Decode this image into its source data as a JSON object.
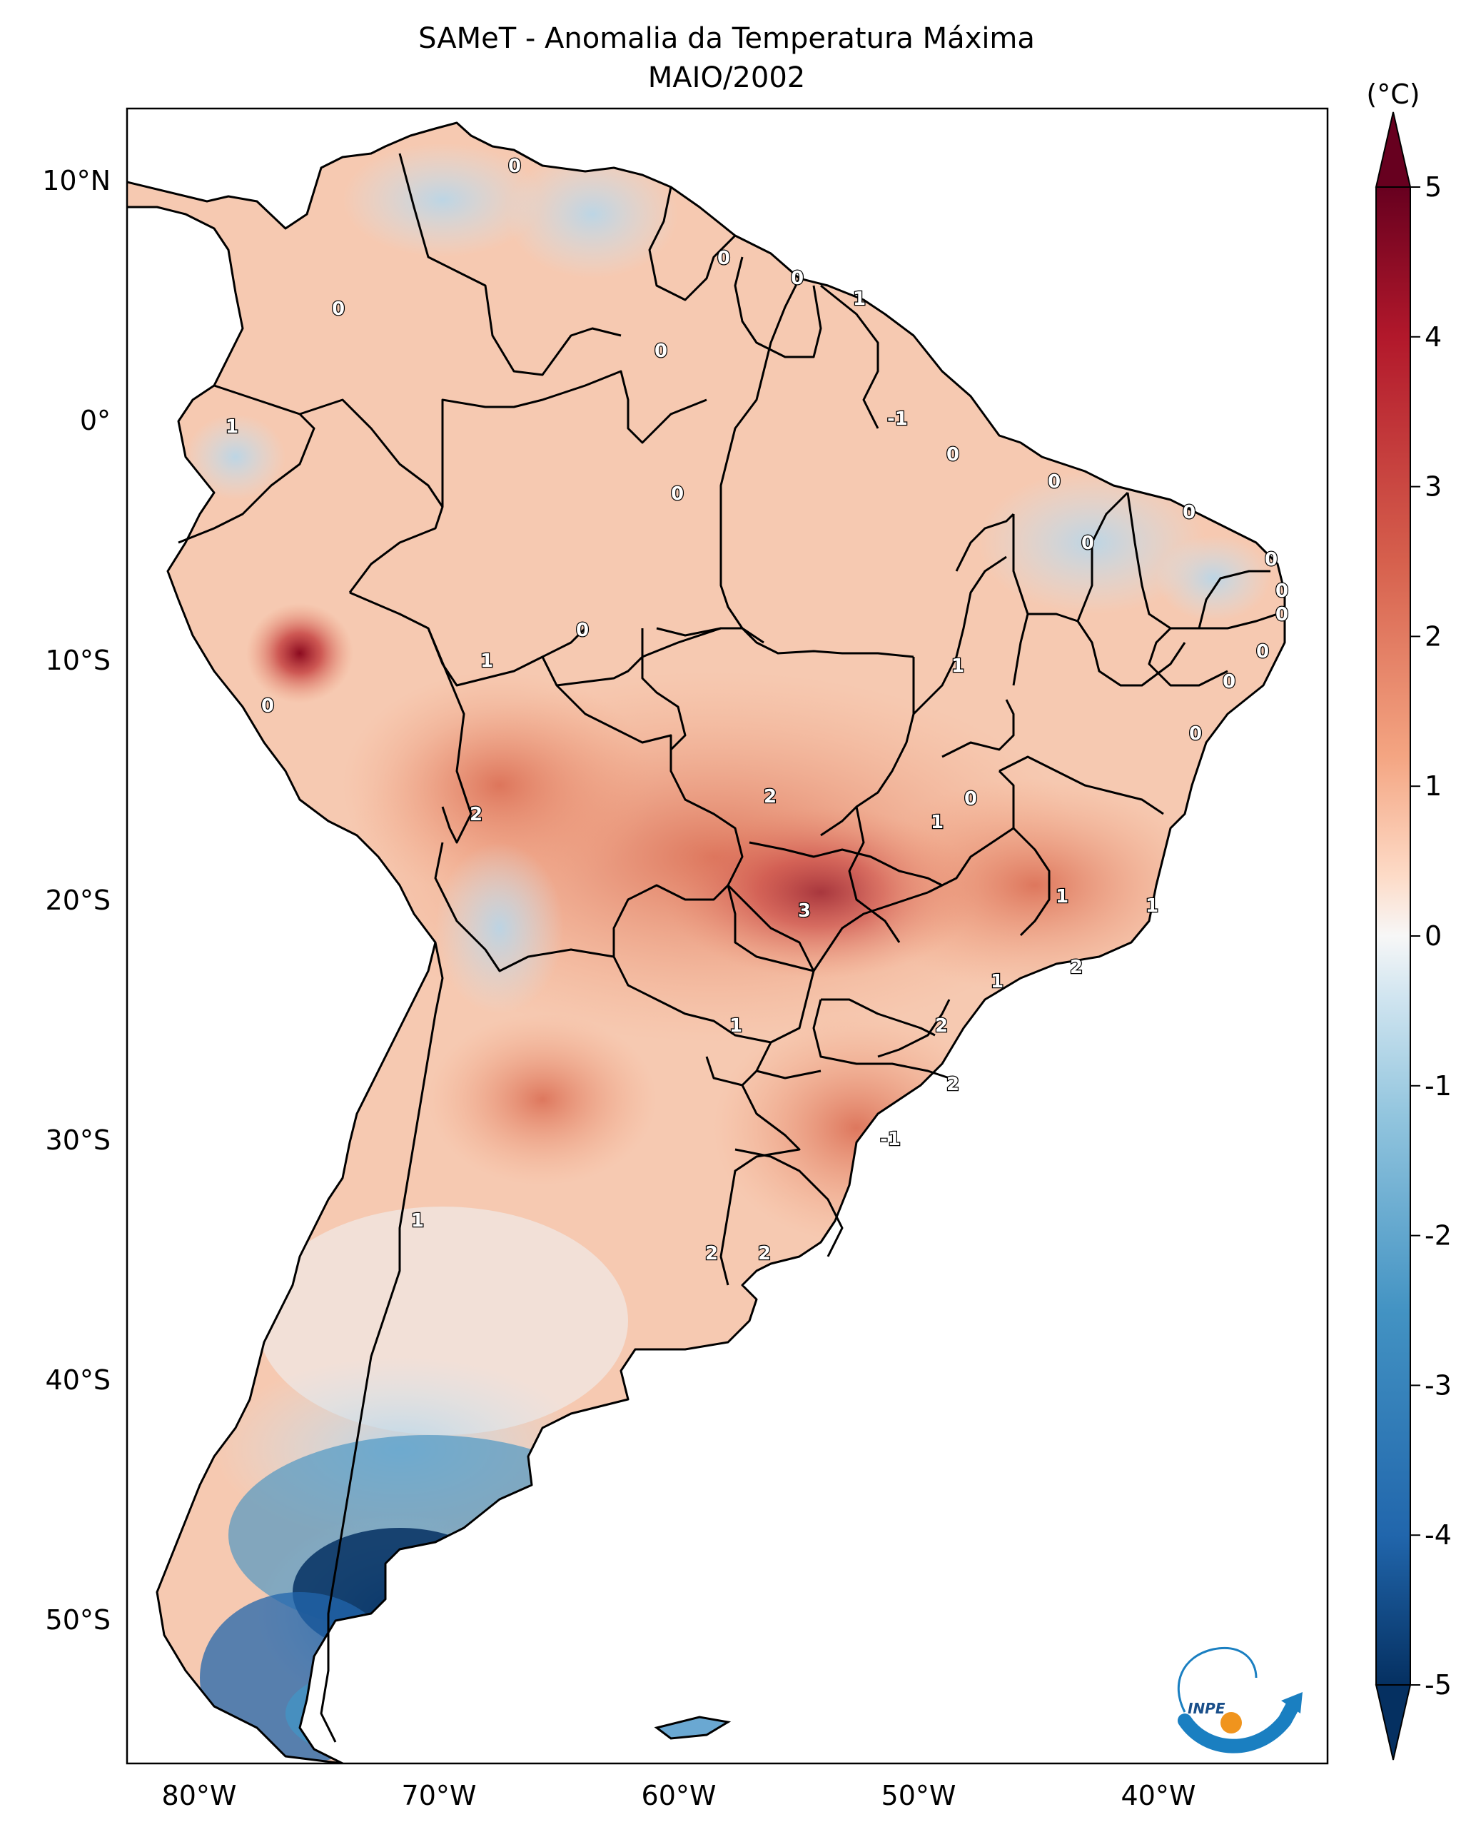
{
  "title_line1": "SAMeT - Anomalia da Temperatura Máxima",
  "title_line2": "MAIO/2002",
  "colorbar": {
    "unit_label": "(°C)",
    "tick_labels": [
      "5",
      "4",
      "3",
      "2",
      "1",
      "0",
      "-1",
      "-2",
      "-3",
      "-4",
      "-5"
    ],
    "range": [
      -5,
      5
    ],
    "colormap": "RdBu_r",
    "extend": "both",
    "colors": {
      "max": "#67001f",
      "high": "#d6604d",
      "mid": "#f7f7f7",
      "low": "#4393c3",
      "min": "#053061"
    }
  },
  "axes": {
    "lon_labels": [
      "80°W",
      "70°W",
      "60°W",
      "50°W",
      "40°W"
    ],
    "lat_labels": [
      "10°N",
      "0°",
      "10°S",
      "20°S",
      "30°S",
      "40°S",
      "50°S"
    ],
    "lon_range": [
      -83,
      -33
    ],
    "lat_range": [
      -56,
      13
    ]
  },
  "contour_labels": [
    "0",
    "0",
    "0",
    "1",
    "0",
    "0",
    "1",
    "0",
    "-1",
    "0",
    "0",
    "0",
    "0",
    "0",
    "0",
    "0",
    "0",
    "0",
    "0",
    "0",
    "1",
    "0",
    "1",
    "1",
    "0",
    "2",
    "2",
    "1",
    "3",
    "1",
    "2",
    "1",
    "1",
    "2",
    "2",
    "-1",
    "1",
    "2"
  ],
  "logo": {
    "text": "INPE",
    "colors": {
      "arrow": "#1a7fc1",
      "dot": "#f0941d"
    }
  }
}
